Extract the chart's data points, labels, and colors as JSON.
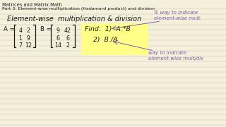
{
  "title1": "Matrices and Matrix Math",
  "title2": "Part 3: Element-wise multiplication (Hadamard product) and division",
  "heading": "Element-wise  multiplication & division",
  "A_matrix": [
    [
      4,
      2
    ],
    [
      1,
      9
    ],
    [
      7,
      12
    ]
  ],
  "B_matrix": [
    [
      9,
      42
    ],
    [
      6,
      6
    ],
    [
      14,
      2
    ]
  ],
  "find1": "Find:  1)  A.*B",
  "find2": "2)  B./A",
  "note1": "① way to indicate\nelement-wise mult.",
  "note2": "way to indicate\nelement-wise mult/div",
  "bg_color": "#f5f0dc",
  "line_color": "#c8c4b0",
  "text_color": "#1a1a1a",
  "purple_color": "#7b5ea7",
  "highlight_color": "#ffff88",
  "fs_tiny": 4.8,
  "fs_small": 5.2,
  "fs_body": 6.2,
  "fs_heading": 7.0,
  "lw_bracket": 0.9,
  "lw_line": 0.35
}
